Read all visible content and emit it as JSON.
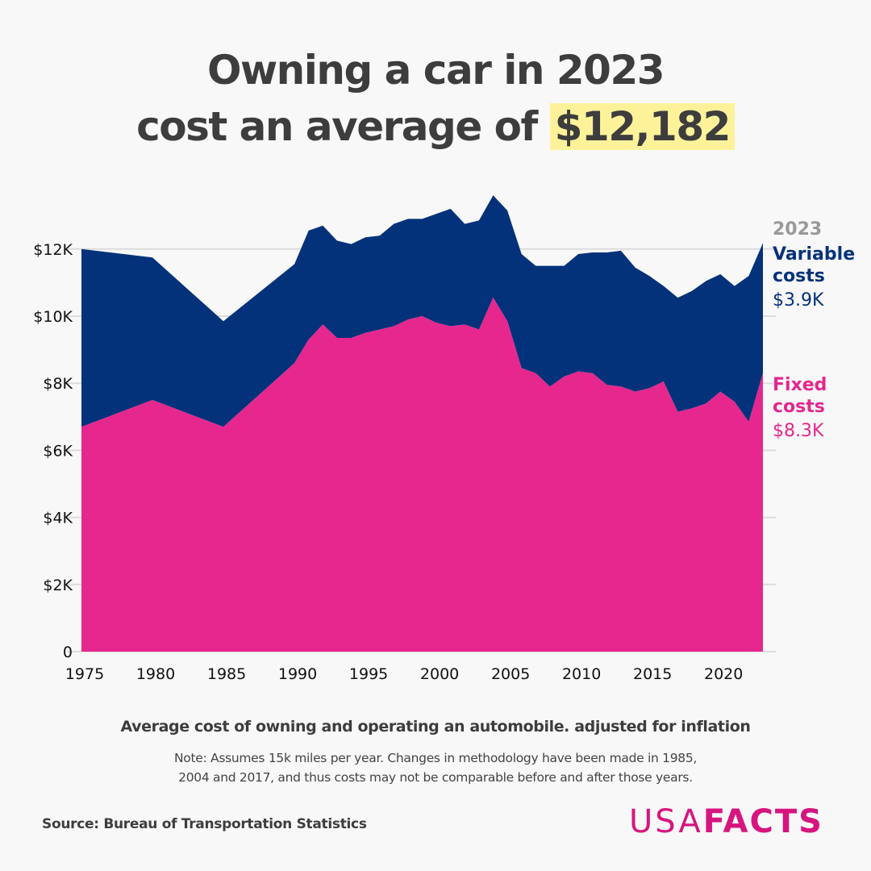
{
  "title": {
    "line1": "Owning a car in 2023",
    "line2_prefix": "cost an average of ",
    "highlight": "$12,182"
  },
  "colors": {
    "variable": "#04327a",
    "fixed": "#e5278e",
    "highlight": "#fdf29a",
    "year_label": "#999999",
    "brand": "#d6157f"
  },
  "labels": {
    "year": "2023",
    "variable_title": "Variable costs",
    "variable_value": "$3.9K",
    "fixed_title": "Fixed costs",
    "fixed_value": "$8.3K"
  },
  "subtitle": "Average cost of owning and operating an automobile. adjusted for inflation",
  "note_line1": "Note: Assumes 15k miles per year. Changes in methodology have been made in 1985,",
  "note_line2": "2004 and 2017, and thus costs may not be comparable before and after those years.",
  "source": "Source: Bureau of Transportation Statistics",
  "logo": {
    "part1": "USA",
    "part2": "FACTS"
  },
  "chart_data": {
    "type": "area",
    "stacked": true,
    "title": "Owning a car in 2023 cost an average of $12,182",
    "xlabel": "",
    "ylabel": "",
    "x": [
      1975,
      1980,
      1985,
      1990,
      1991,
      1992,
      1993,
      1994,
      1995,
      1996,
      1997,
      1998,
      1999,
      2000,
      2001,
      2002,
      2003,
      2004,
      2005,
      2006,
      2007,
      2008,
      2009,
      2010,
      2011,
      2012,
      2013,
      2014,
      2015,
      2016,
      2017,
      2018,
      2019,
      2020,
      2021,
      2022,
      2023
    ],
    "series": [
      {
        "name": "Fixed costs",
        "values": [
          6700,
          7500,
          6700,
          8600,
          9300,
          9750,
          9350,
          9350,
          9500,
          9600,
          9700,
          9900,
          10000,
          9800,
          9700,
          9750,
          9600,
          10550,
          9850,
          8450,
          8300,
          7900,
          8200,
          8350,
          8300,
          7950,
          7900,
          7750,
          7850,
          8050,
          7150,
          7250,
          7400,
          7750,
          7450,
          6850,
          8300
        ]
      },
      {
        "name": "Variable costs",
        "values": [
          5300,
          4250,
          3150,
          2950,
          3250,
          2950,
          2900,
          2800,
          2850,
          2800,
          3050,
          3000,
          2900,
          3250,
          3500,
          3000,
          3250,
          3050,
          3300,
          3400,
          3200,
          3600,
          3300,
          3500,
          3600,
          3950,
          4050,
          3700,
          3350,
          2850,
          3400,
          3500,
          3650,
          3500,
          3450,
          4350,
          3882
        ]
      }
    ],
    "xticks": [
      "1975",
      "1980",
      "1985",
      "1990",
      "1995",
      "2000",
      "2005",
      "2010",
      "2015",
      "2020"
    ],
    "yticks": [
      "0",
      "$2K",
      "$4K",
      "$6K",
      "$8K",
      "$10K",
      "$12K"
    ],
    "ytick_values": [
      0,
      2000,
      4000,
      6000,
      8000,
      10000,
      12000
    ],
    "xlim": [
      1975,
      2023
    ],
    "ylim": [
      0,
      14000
    ],
    "grid": true,
    "legend": "direct labels at right end (2023)"
  }
}
